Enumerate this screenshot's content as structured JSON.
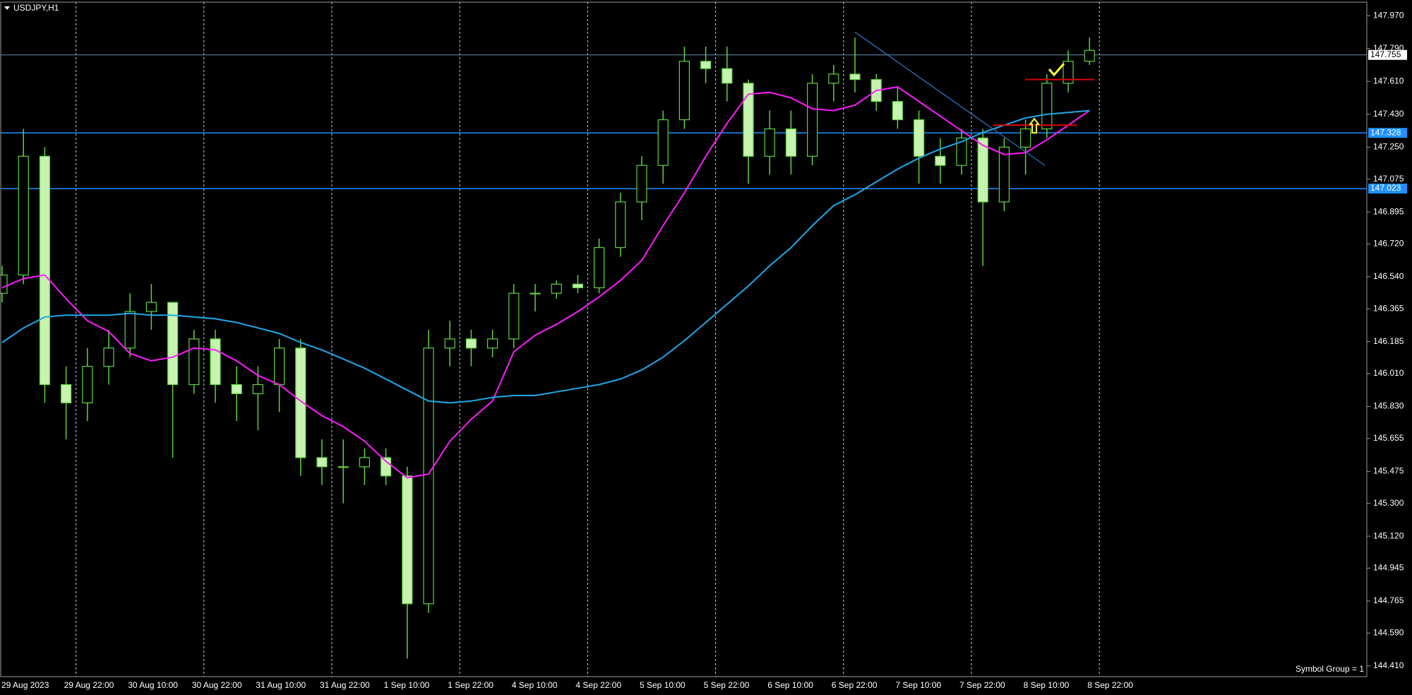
{
  "chart_data": {
    "type": "candlestick",
    "title": "USDJPY,H1",
    "annotation": "Symbol Group = 1",
    "categories": [
      "29 Aug 2023",
      null,
      null,
      "29 Aug 22:00",
      null,
      null,
      "30 Aug 10:00",
      null,
      null,
      "30 Aug 22:00",
      null,
      null,
      "31 Aug 10:00",
      null,
      null,
      "31 Aug 22:00",
      null,
      null,
      "1 Sep 10:00",
      null,
      null,
      "1 Sep 22:00",
      null,
      null,
      "4 Sep 10:00",
      null,
      null,
      "4 Sep 22:00",
      null,
      null,
      "5 Sep 10:00",
      null,
      null,
      "5 Sep 22:00",
      null,
      null,
      "6 Sep 10:00",
      null,
      null,
      "6 Sep 22:00",
      null,
      null,
      "7 Sep 10:00",
      null,
      null,
      "7 Sep 22:00",
      null,
      null,
      "8 Sep 10:00",
      null,
      null,
      "8 Sep 22:00"
    ],
    "open": [
      146.45,
      146.55,
      147.2,
      145.95,
      145.85,
      146.05,
      146.15,
      146.35,
      146.4,
      145.95,
      146.2,
      145.95,
      145.9,
      145.95,
      146.15,
      145.55,
      145.5,
      145.5,
      145.55,
      145.45,
      144.75,
      146.15,
      146.2,
      146.15,
      146.2,
      146.45,
      146.45,
      146.5,
      146.48,
      146.7,
      146.95,
      147.15,
      147.4,
      147.72,
      147.68,
      147.6,
      147.2,
      147.35,
      147.2,
      147.6,
      147.65,
      147.62,
      147.5,
      147.4,
      147.2,
      147.15,
      147.3,
      146.95,
      147.25,
      147.35,
      147.6,
      147.72
    ],
    "high": [
      146.6,
      147.35,
      147.25,
      146.05,
      146.15,
      146.25,
      146.45,
      146.5,
      146.4,
      146.25,
      146.25,
      146.05,
      146.05,
      146.2,
      146.2,
      145.65,
      145.65,
      145.6,
      145.6,
      145.5,
      146.25,
      146.3,
      146.25,
      146.25,
      146.5,
      146.5,
      146.52,
      146.55,
      146.75,
      147.0,
      147.2,
      147.45,
      147.8,
      147.8,
      147.8,
      147.62,
      147.45,
      147.45,
      147.65,
      147.7,
      147.85,
      147.65,
      147.58,
      147.45,
      147.3,
      147.35,
      147.35,
      147.3,
      147.4,
      147.65,
      147.78,
      147.85
    ],
    "low": [
      146.4,
      146.5,
      145.85,
      145.65,
      145.75,
      145.95,
      146.1,
      146.25,
      145.55,
      145.9,
      145.85,
      145.75,
      145.7,
      145.8,
      145.45,
      145.4,
      145.3,
      145.4,
      145.4,
      144.45,
      144.7,
      146.05,
      146.05,
      146.1,
      146.15,
      146.35,
      146.42,
      146.45,
      146.45,
      146.65,
      146.85,
      147.05,
      147.35,
      147.6,
      147.5,
      147.05,
      147.1,
      147.1,
      147.15,
      147.5,
      147.55,
      147.45,
      147.35,
      147.05,
      147.05,
      147.1,
      146.6,
      146.9,
      147.1,
      147.3,
      147.55,
      147.7
    ],
    "close": [
      146.55,
      147.2,
      145.95,
      145.85,
      146.05,
      146.15,
      146.35,
      146.4,
      145.95,
      146.2,
      145.95,
      145.9,
      145.95,
      146.15,
      145.55,
      145.5,
      145.5,
      145.55,
      145.45,
      144.75,
      146.15,
      146.2,
      146.15,
      146.2,
      146.45,
      146.45,
      146.5,
      146.48,
      146.7,
      146.95,
      147.15,
      147.4,
      147.72,
      147.68,
      147.6,
      147.2,
      147.35,
      147.2,
      147.6,
      147.65,
      147.62,
      147.5,
      147.4,
      147.2,
      147.15,
      147.3,
      146.95,
      147.25,
      147.35,
      147.6,
      147.72,
      147.78
    ],
    "candle_colors": {
      "wick": "#5fd33c",
      "bull": "#000000",
      "bear": "#c6f4b0"
    },
    "series": [
      {
        "color": "#ff1aff",
        "values": [
          146.48,
          146.53,
          146.55,
          146.42,
          146.3,
          146.24,
          146.12,
          146.08,
          146.1,
          146.15,
          146.14,
          146.08,
          146.0,
          145.95,
          145.86,
          145.78,
          145.72,
          145.64,
          145.53,
          145.44,
          145.46,
          145.64,
          145.76,
          145.86,
          146.13,
          146.22,
          146.28,
          146.35,
          146.43,
          146.52,
          146.63,
          146.82,
          147.0,
          147.2,
          147.38,
          147.54,
          147.55,
          147.52,
          147.46,
          147.45,
          147.48,
          147.56,
          147.58,
          147.5,
          147.42,
          147.34,
          147.26,
          147.21,
          147.22,
          147.29,
          147.37,
          147.45
        ]
      },
      {
        "color": "#1fa8e8",
        "values": [
          146.18,
          146.26,
          146.32,
          146.33,
          146.33,
          146.33,
          146.34,
          146.33,
          146.33,
          146.32,
          146.31,
          146.29,
          146.26,
          146.23,
          146.18,
          146.14,
          146.09,
          146.04,
          145.98,
          145.92,
          145.86,
          145.85,
          145.86,
          145.88,
          145.89,
          145.89,
          145.91,
          145.93,
          145.95,
          145.98,
          146.03,
          146.1,
          146.19,
          146.29,
          146.39,
          146.49,
          146.6,
          146.7,
          146.82,
          146.93,
          146.99,
          147.06,
          147.13,
          147.19,
          147.24,
          147.28,
          147.33,
          147.37,
          147.41,
          147.43,
          147.44,
          147.45
        ]
      }
    ],
    "levels": [
      {
        "value": 147.755,
        "color": "#6d8fb0"
      },
      {
        "value": 147.328,
        "color": "#1e90ff"
      },
      {
        "value": 147.023,
        "color": "#1e90ff"
      }
    ],
    "segments": [
      {
        "value": 147.62,
        "color": "#e00000"
      },
      {
        "value": 147.37,
        "color": "#e00000"
      }
    ],
    "trendline": {
      "values": [
        147.88,
        147.15
      ],
      "color": "#2a7fd0"
    },
    "ylim": [
      144.351,
      148.044
    ],
    "yticks": [
      {
        "value": 147.97,
        "label": "147.970"
      },
      {
        "value": 147.79,
        "label": "147.790"
      },
      {
        "value": 147.61,
        "label": "147.610"
      },
      {
        "value": 147.43,
        "label": "147.430"
      },
      {
        "value": 147.25,
        "label": "147.250"
      },
      147.075,
      146.895,
      {
        "value": 146.72,
        "label": "146.720"
      },
      {
        "value": 146.54,
        "label": "146.540"
      },
      146.365,
      146.185,
      {
        "value": 146.01,
        "label": "146.010"
      },
      {
        "value": 145.83,
        "label": "145.830"
      },
      145.655,
      145.475,
      {
        "value": 145.3,
        "label": "145.300"
      },
      {
        "value": 145.12,
        "label": "145.120"
      },
      144.945,
      144.765,
      {
        "value": 144.59,
        "label": "144.590"
      },
      {
        "value": 144.41,
        "label": "144.410"
      }
    ],
    "grid": true
  }
}
